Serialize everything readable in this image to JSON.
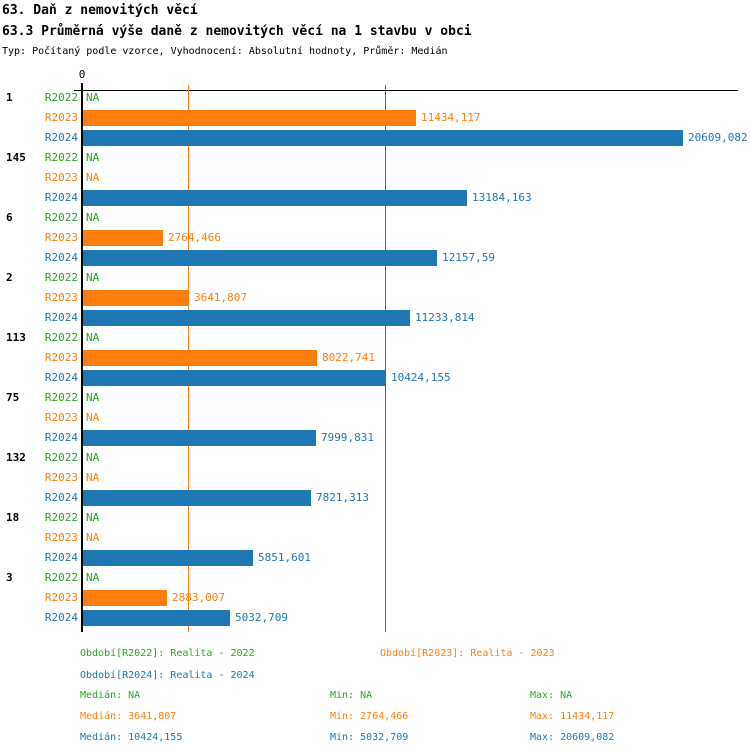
{
  "chart_data": {
    "type": "bar",
    "orientation": "horizontal",
    "title": "63. Daň z nemovitých věcí",
    "subtitle": "63.3 Průměrná výše daně z nemovitých věcí na 1 stavbu v obci",
    "settings_line": "Typ: Počítaný podle vzorce, Vyhodnocení: Absolutní hodnoty, Průměr: Medián",
    "value_axis": {
      "zero_label": "0",
      "min": 0,
      "max": 20609.082,
      "grid": false
    },
    "legend_position": "bottom",
    "categories": [
      "1",
      "145",
      "6",
      "2",
      "113",
      "75",
      "132",
      "18",
      "3"
    ],
    "series": [
      {
        "id": "R2022",
        "label": "R2022",
        "legend": "Období[R2022]: Realita - 2022",
        "color": "#2ca02c"
      },
      {
        "id": "R2023",
        "label": "R2023",
        "legend": "Období[R2023]: Realita - 2023",
        "color": "#ff7f0e"
      },
      {
        "id": "R2024",
        "label": "R2024",
        "legend": "Období[R2024]: Realita - 2024",
        "color": "#1f77b4"
      }
    ],
    "groups": [
      {
        "label": "1",
        "values": [
          null,
          11434.117,
          20609.082
        ],
        "displays": [
          "NA",
          "11434,117",
          "20609,082"
        ]
      },
      {
        "label": "145",
        "values": [
          null,
          null,
          13184.163
        ],
        "displays": [
          "NA",
          "NA",
          "13184,163"
        ]
      },
      {
        "label": "6",
        "values": [
          null,
          2764.466,
          12157.59
        ],
        "displays": [
          "NA",
          "2764,466",
          "12157,59"
        ]
      },
      {
        "label": "2",
        "values": [
          null,
          3641.807,
          11233.814
        ],
        "displays": [
          "NA",
          "3641,807",
          "11233,814"
        ]
      },
      {
        "label": "113",
        "values": [
          null,
          8022.741,
          10424.155
        ],
        "displays": [
          "NA",
          "8022,741",
          "10424,155"
        ]
      },
      {
        "label": "75",
        "values": [
          null,
          null,
          7999.831
        ],
        "displays": [
          "NA",
          "NA",
          "7999,831"
        ]
      },
      {
        "label": "132",
        "values": [
          null,
          null,
          7821.313
        ],
        "displays": [
          "NA",
          "NA",
          "7821,313"
        ]
      },
      {
        "label": "18",
        "values": [
          null,
          null,
          5851.601
        ],
        "displays": [
          "NA",
          "NA",
          "5851,601"
        ]
      },
      {
        "label": "3",
        "values": [
          null,
          2883.007,
          5032.709
        ],
        "displays": [
          "NA",
          "2883,007",
          "5032,709"
        ]
      }
    ],
    "median_lines": [
      {
        "series": "R2023",
        "value": 3641.807,
        "color": "#ff7f0e"
      },
      {
        "series": "R2024",
        "value": 10424.155,
        "color": "#1f77b4"
      }
    ],
    "stats": {
      "labels": {
        "median": "Medián",
        "min": "Min",
        "max": "Max"
      },
      "rows": [
        {
          "series": "R2022",
          "median": "NA",
          "min": "NA",
          "max": "NA"
        },
        {
          "series": "R2023",
          "median": "3641,807",
          "min": "2764,466",
          "max": "11434,117"
        },
        {
          "series": "R2024",
          "median": "10424,155",
          "min": "5032,709",
          "max": "20609,082"
        }
      ]
    }
  }
}
